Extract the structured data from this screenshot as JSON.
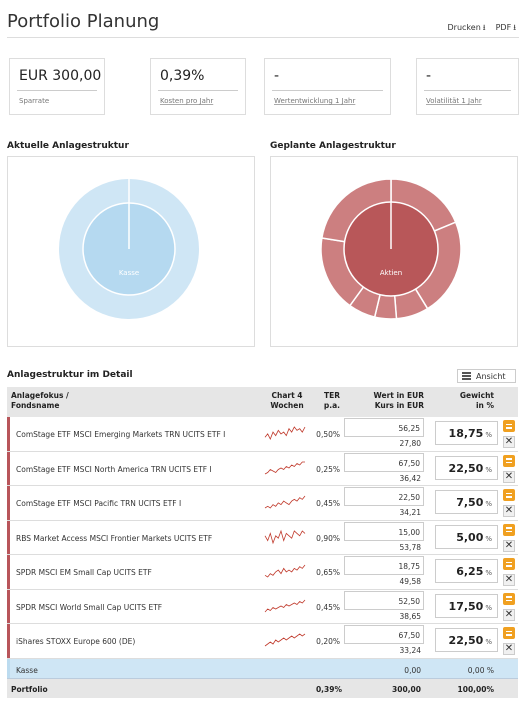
{
  "header": {
    "title": "Portfolio Planung",
    "print_label": "Drucken",
    "pdf_label": "PDF"
  },
  "kpis": [
    {
      "value": "EUR 300,00",
      "label": "Sparrate"
    },
    {
      "value": "0,39%",
      "label": "Kosten pro Jahr"
    },
    {
      "value": "-",
      "label": "Wertentwicklung 1 Jahr"
    },
    {
      "value": "-",
      "label": "Volatilität 1 Jahr"
    }
  ],
  "current_structure": {
    "title": "Aktuelle Anlagestruktur",
    "center_label": "Kasse",
    "colors": {
      "outer": "#cfe6f5",
      "inner": "#b5d9f0"
    }
  },
  "planned_structure": {
    "title": "Geplante Anlagestruktur",
    "center_label": "Aktien",
    "colors": {
      "outer": "#cc7f80",
      "inner": "#b85759"
    }
  },
  "detail": {
    "title": "Anlagestruktur im Detail",
    "view_button": "Ansicht",
    "headers": {
      "fonds_1": "Anlagefokus /",
      "fonds_2": "Fondsname",
      "chart_1": "Chart 4",
      "chart_2": "Wochen",
      "ter_1": "TER",
      "ter_2": "p.a.",
      "wert_1": "Wert in EUR",
      "wert_2": "Kurs in EUR",
      "gew_1": "Gewicht",
      "gew_2": "in %"
    },
    "rows": [
      {
        "name": "ComStage ETF MSCI Emerging Markets TRN UCITS ETF I",
        "ter": "0,50%",
        "wert": "56,25",
        "kurs": "27,80",
        "gewicht": "18,75",
        "unit": "%",
        "spark": [
          3,
          5,
          2,
          6,
          4,
          7,
          5,
          6,
          4,
          8,
          6,
          9,
          7,
          8,
          6,
          9
        ]
      },
      {
        "name": "ComStage ETF MSCI North America TRN UCITS ETF I",
        "ter": "0,25%",
        "wert": "67,50",
        "kurs": "36,42",
        "gewicht": "22,50",
        "unit": "%",
        "spark": [
          2,
          3,
          5,
          4,
          3,
          5,
          6,
          5,
          7,
          6,
          8,
          7,
          9,
          8,
          10,
          10
        ]
      },
      {
        "name": "ComStage ETF MSCI Pacific TRN UCITS ETF I",
        "ter": "0,45%",
        "wert": "22,50",
        "kurs": "34,21",
        "gewicht": "7,50",
        "unit": "%",
        "spark": [
          3,
          4,
          3,
          5,
          4,
          6,
          5,
          7,
          6,
          5,
          7,
          8,
          7,
          9,
          8,
          10
        ]
      },
      {
        "name": "RBS Market Access MSCI Frontier Markets UCITS ETF",
        "ter": "0,90%",
        "wert": "15,00",
        "kurs": "53,78",
        "gewicht": "5,00",
        "unit": "%",
        "spark": [
          5,
          3,
          6,
          2,
          5,
          4,
          7,
          3,
          6,
          5,
          4,
          7,
          6,
          5,
          7,
          6
        ]
      },
      {
        "name": "SPDR MSCI EM Small Cap UCITS ETF",
        "ter": "0,65%",
        "wert": "18,75",
        "kurs": "49,58",
        "gewicht": "6,25",
        "unit": "%",
        "spark": [
          3,
          2,
          4,
          3,
          5,
          6,
          4,
          7,
          5,
          6,
          5,
          7,
          6,
          8,
          7,
          9
        ]
      },
      {
        "name": "SPDR MSCI World Small Cap UCITS ETF",
        "ter": "0,45%",
        "wert": "52,50",
        "kurs": "38,65",
        "gewicht": "17,50",
        "unit": "%",
        "spark": [
          2,
          4,
          3,
          5,
          4,
          5,
          6,
          5,
          7,
          6,
          7,
          8,
          7,
          9,
          8,
          10
        ]
      },
      {
        "name": "iShares STOXX Europe 600 (DE)",
        "ter": "0,20%",
        "wert": "67,50",
        "kurs": "33,24",
        "gewicht": "22,50",
        "unit": "%",
        "spark": [
          3,
          4,
          5,
          4,
          6,
          5,
          6,
          7,
          6,
          7,
          8,
          7,
          8,
          9,
          8,
          9
        ]
      }
    ],
    "kasse": {
      "name": "Kasse",
      "wert": "0,00",
      "gewicht": "0,00 %"
    },
    "portfolio": {
      "name": "Portfolio",
      "ter": "0,39%",
      "wert": "300,00",
      "gewicht": "100,00%"
    }
  }
}
